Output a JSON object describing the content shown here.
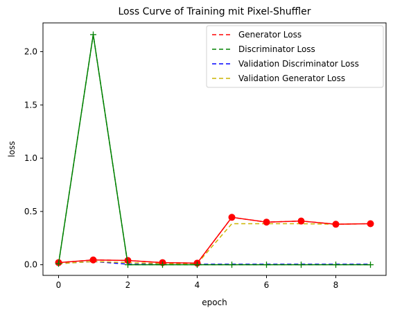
{
  "chart_data": {
    "type": "line",
    "title": "Loss Curve of Training mit Pixel-Shuffler",
    "xlabel": "epoch",
    "ylabel": "loss",
    "xlim": [
      -0.45,
      9.45
    ],
    "ylim": [
      -0.1,
      2.27
    ],
    "xticks": [
      0,
      2,
      4,
      6,
      8
    ],
    "yticks": [
      0.0,
      0.5,
      1.0,
      1.5,
      2.0
    ],
    "xtick_labels": [
      "0",
      "2",
      "4",
      "6",
      "8"
    ],
    "ytick_labels": [
      "0.0",
      "0.5",
      "1.0",
      "1.5",
      "2.0"
    ],
    "grid": false,
    "legend_position": "top-right",
    "x": [
      0,
      1,
      2,
      3,
      4,
      5,
      6,
      7,
      8,
      9
    ],
    "series": [
      {
        "name": "Generator Loss",
        "color": "#ff0000",
        "values": [
          0.02,
          0.045,
          0.04,
          0.02,
          0.015,
          0.445,
          0.4,
          0.41,
          0.38,
          0.385
        ]
      },
      {
        "name": "Discriminator Loss",
        "color": "#008000",
        "values": [
          0.01,
          2.16,
          0.0,
          0.0,
          0.0,
          0.0,
          0.0,
          0.0,
          0.0,
          0.0
        ]
      },
      {
        "name": "Validation Discriminator Loss",
        "color": "#0000ff",
        "values": [
          0.01,
          0.03,
          0.005,
          0.005,
          0.005,
          0.005,
          0.005,
          0.005,
          0.005,
          0.005
        ]
      },
      {
        "name": "Validation Generator Loss",
        "color": "#ccb400",
        "values": [
          0.01,
          0.03,
          0.02,
          0.01,
          0.01,
          0.385,
          0.385,
          0.385,
          0.38,
          0.385
        ]
      }
    ],
    "overlays": [
      {
        "series": "Generator Loss",
        "color": "#ff0000",
        "marker": "circle",
        "line_style": "solid"
      },
      {
        "series": "Discriminator Loss",
        "color": "#008000",
        "marker": "plus",
        "line_style": "solid"
      }
    ]
  }
}
